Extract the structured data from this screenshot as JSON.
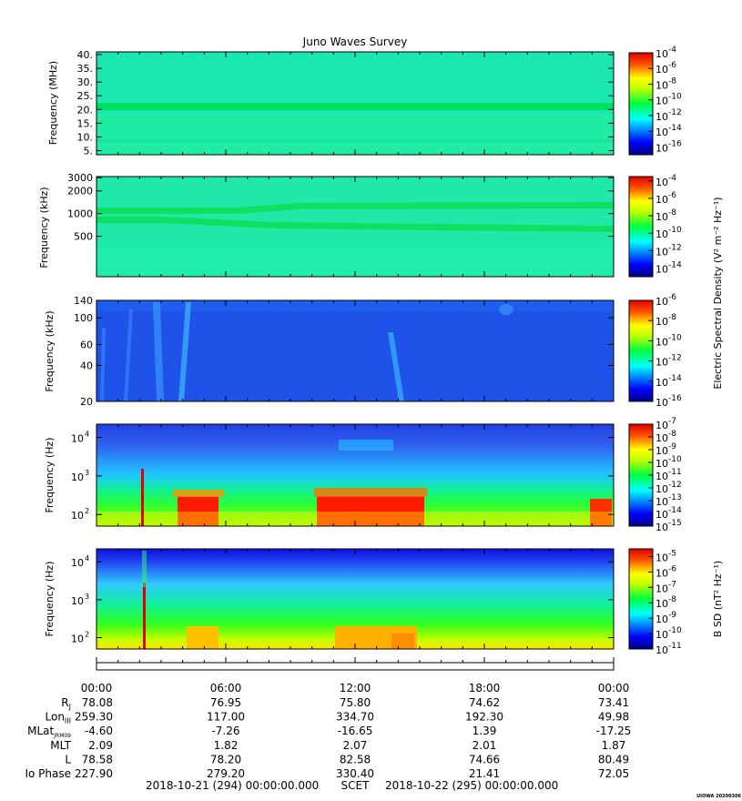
{
  "title": "Juno Waves Survey",
  "colorbar_titles": {
    "electric": "Electric Spectral Density (V² m⁻² Hz⁻¹)",
    "magnetic": "B SD (nT² Hz⁻¹)"
  },
  "chart_data": [
    {
      "type": "heatmap",
      "ylabel": "Frequency (MHz)",
      "yscale": "linear",
      "ylim": [
        3.5,
        41
      ],
      "yticks": [
        5,
        10,
        15,
        20,
        25,
        30,
        35,
        40
      ],
      "ytick_labels": [
        "5.",
        "10.",
        "15.",
        "20.",
        "25.",
        "30.",
        "35.",
        "40."
      ],
      "colorbar_exponents": [
        -4,
        -6,
        -8,
        -10,
        -12,
        -14,
        -16
      ],
      "colorbar_log_range": [
        -17,
        -4
      ]
    },
    {
      "type": "heatmap",
      "ylabel": "Frequency (kHz)",
      "yscale": "log",
      "ylim": [
        145,
        3100
      ],
      "yticks": [
        500,
        1000,
        2000,
        3000
      ],
      "ytick_labels": [
        "500",
        "1000",
        "2000",
        "3000"
      ],
      "colorbar_exponents": [
        -4,
        -6,
        -8,
        -10,
        -12,
        -14
      ],
      "colorbar_log_range": [
        -15,
        -3.5
      ]
    },
    {
      "type": "heatmap",
      "ylabel": "Frequency (kHz)",
      "yscale": "log",
      "ylim": [
        20,
        140
      ],
      "yticks": [
        20,
        40,
        60,
        100,
        140
      ],
      "ytick_labels": [
        "20",
        "40",
        "60",
        "100",
        "140"
      ],
      "colorbar_exponents": [
        -6,
        -8,
        -10,
        -12,
        -14,
        -16
      ],
      "colorbar_log_range": [
        -16,
        -6
      ]
    },
    {
      "type": "heatmap",
      "ylabel": "Frequency (Hz)",
      "yscale": "log",
      "ylim": [
        50,
        22000
      ],
      "yticks": [
        100,
        1000,
        10000
      ],
      "ytick_bases": [
        "10",
        "10",
        "10"
      ],
      "ytick_exponents": [
        "2",
        "3",
        "4"
      ],
      "colorbar_exponents": [
        -7,
        -8,
        -9,
        -10,
        -11,
        -12,
        -13,
        -14,
        -15
      ],
      "colorbar_log_range": [
        -15,
        -7
      ]
    },
    {
      "type": "heatmap",
      "ylabel": "Frequency (Hz)",
      "yscale": "log",
      "ylim": [
        50,
        22000
      ],
      "yticks": [
        100,
        1000,
        10000
      ],
      "ytick_bases": [
        "10",
        "10",
        "10"
      ],
      "ytick_exponents": [
        "2",
        "3",
        "4"
      ],
      "colorbar_exponents": [
        -5,
        -6,
        -7,
        -8,
        -9,
        -10,
        -11
      ],
      "colorbar_log_range": [
        -11,
        -4.5
      ]
    }
  ],
  "colorbar_base": "10",
  "ephemeris": {
    "times": [
      "00:00",
      "06:00",
      "12:00",
      "18:00",
      "00:00"
    ],
    "rows": [
      {
        "label": "R",
        "sub": "J",
        "values": [
          "78.08",
          "76.95",
          "75.80",
          "74.62",
          "73.41"
        ]
      },
      {
        "label": "Lon",
        "sub": "III",
        "values": [
          "259.30",
          "117.00",
          "334.70",
          "192.30",
          "49.98"
        ]
      },
      {
        "label": "MLat",
        "sub": "JRM09",
        "values": [
          "-4.60",
          "-7.26",
          "-16.65",
          "1.39",
          "-17.25"
        ]
      },
      {
        "label": "MLT",
        "sub": "",
        "values": [
          "2.09",
          "1.82",
          "2.07",
          "2.01",
          "1.87"
        ]
      },
      {
        "label": "L",
        "sub": "",
        "values": [
          "78.58",
          "78.20",
          "82.58",
          "74.66",
          "80.49"
        ]
      },
      {
        "label": "Io Phase",
        "sub": "",
        "values": [
          "227.90",
          "279.20",
          "330.40",
          "21.41",
          "72.05"
        ]
      }
    ]
  },
  "footer": {
    "start": "2018-10-21 (294) 00:00:00.000",
    "scet": "SCET",
    "end": "2018-10-22 (295) 00:00:00.000"
  },
  "credit": "UIOWA 20200306"
}
